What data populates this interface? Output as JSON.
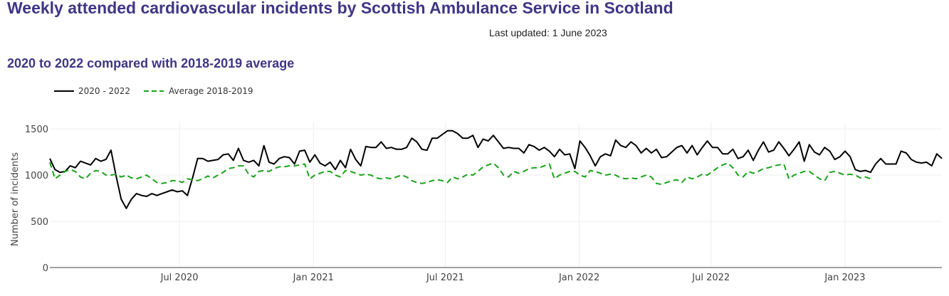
{
  "header": {
    "title": "Weekly attended cardiovascular incidents by Scottish Ambulance Service in Scotland",
    "last_updated": "Last updated: 1 June 2023",
    "subtitle": "2020 to 2022 compared with 2018-2019 average"
  },
  "colors": {
    "title": "#3f3685",
    "series_2020_2022": "#000000",
    "series_average": "#1aa31a",
    "grid": "#eeeeee"
  },
  "chart_data": {
    "type": "line",
    "title": "Weekly attended cardiovascular incidents by Scottish Ambulance Service in Scotland",
    "subtitle": "2020 to 2022 compared with 2018-2019 average",
    "xlabel": "",
    "ylabel": "Number of incidents",
    "x_type": "date",
    "x_range": [
      "2020-01-05",
      "2023-05-14"
    ],
    "ylim": [
      0,
      1540
    ],
    "y_ticks": [
      0,
      500,
      1000,
      1500
    ],
    "x_ticks": [
      {
        "date": "2020-07-01",
        "label": "Jul 2020"
      },
      {
        "date": "2021-01-01",
        "label": "Jan 2021"
      },
      {
        "date": "2021-07-01",
        "label": "Jul 2021"
      },
      {
        "date": "2022-01-01",
        "label": "Jan 2022"
      },
      {
        "date": "2022-07-01",
        "label": "Jul 2022"
      },
      {
        "date": "2023-01-01",
        "label": "Jan 2023"
      }
    ],
    "grid": true,
    "legend_position": "top-left",
    "series": [
      {
        "name": "2020 - 2022",
        "style": "solid",
        "x_start": "2020-01-05",
        "x_step_days": 7,
        "values": [
          1180,
          1060,
          1030,
          1040,
          1100,
          1080,
          1150,
          1130,
          1110,
          1180,
          1150,
          1170,
          1270,
          990,
          740,
          640,
          740,
          800,
          780,
          770,
          800,
          780,
          800,
          820,
          840,
          820,
          830,
          780,
          970,
          1180,
          1180,
          1150,
          1160,
          1170,
          1220,
          1230,
          1160,
          1290,
          1160,
          1140,
          1160,
          1100,
          1320,
          1140,
          1120,
          1180,
          1200,
          1190,
          1120,
          1260,
          1270,
          1140,
          1220,
          1130,
          1100,
          1140,
          1060,
          1160,
          1080,
          1280,
          1170,
          1100,
          1310,
          1300,
          1300,
          1360,
          1290,
          1300,
          1280,
          1280,
          1300,
          1400,
          1360,
          1280,
          1270,
          1400,
          1400,
          1440,
          1480,
          1480,
          1450,
          1400,
          1400,
          1430,
          1300,
          1390,
          1370,
          1430,
          1360,
          1290,
          1300,
          1290,
          1290,
          1240,
          1330,
          1310,
          1270,
          1300,
          1260,
          1200,
          1280,
          1220,
          1230,
          1070,
          1370,
          1300,
          1210,
          1100,
          1200,
          1230,
          1210,
          1380,
          1320,
          1300,
          1360,
          1320,
          1240,
          1290,
          1240,
          1280,
          1190,
          1200,
          1250,
          1300,
          1320,
          1240,
          1320,
          1220,
          1300,
          1370,
          1300,
          1300,
          1230,
          1230,
          1280,
          1180,
          1200,
          1270,
          1160,
          1270,
          1360,
          1250,
          1270,
          1360,
          1290,
          1210,
          1280,
          1360,
          1150,
          1330,
          1250,
          1220,
          1300,
          1260,
          1170,
          1200,
          1260,
          1200,
          1060,
          1040,
          1050,
          1030,
          1120,
          1180,
          1120,
          1120,
          1120,
          1260,
          1240,
          1170,
          1140,
          1130,
          1140,
          1100,
          1230,
          1180,
          1160
        ]
      },
      {
        "name": "Average 2018-2019",
        "style": "dashed",
        "x_start": "2020-01-05",
        "x_step_days": 7,
        "values": [
          1140,
          960,
          1000,
          1040,
          1060,
          1040,
          980,
          960,
          1020,
          1050,
          1040,
          1000,
          1000,
          1010,
          980,
          1000,
          970,
          960,
          980,
          1000,
          960,
          920,
          910,
          920,
          940,
          940,
          920,
          960,
          950,
          940,
          960,
          990,
          970,
          1000,
          1030,
          1070,
          1080,
          1100,
          1100,
          1010,
          980,
          1040,
          1050,
          1040,
          1070,
          1090,
          1090,
          1100,
          1100,
          1110,
          1120,
          960,
          1000,
          1020,
          1040,
          1040,
          1000,
          980,
          1050,
          1040,
          1020,
          1000,
          1010,
          1000,
          970,
          960,
          970,
          960,
          980,
          1000,
          980,
          940,
          920,
          910,
          920,
          940,
          950,
          940,
          920,
          980,
          960,
          980,
          1010,
          1000,
          1040,
          1090,
          1110,
          1130,
          1080,
          1000,
          980,
          1040,
          1020,
          1040,
          1070,
          1080,
          1080,
          1100,
          1120,
          960,
          1000,
          1020,
          1040,
          1040,
          1000,
          980,
          1050,
          1040,
          1020,
          1000,
          1010,
          1000,
          970,
          960,
          970,
          960,
          980,
          1000,
          980,
          910,
          900,
          920,
          940,
          950,
          920,
          980,
          960,
          980,
          1010,
          1000,
          1040,
          1080,
          1110,
          1130,
          1080,
          1000,
          980,
          1040,
          1020,
          1040,
          1070,
          1080,
          1100,
          1110,
          1120,
          960,
          1000,
          1020,
          1040,
          1040,
          1000,
          960,
          940,
          1030,
          1040,
          1020,
          1000,
          1010,
          1000,
          970,
          980,
          960
        ],
        "x_offset_weeks": 0
      }
    ]
  }
}
